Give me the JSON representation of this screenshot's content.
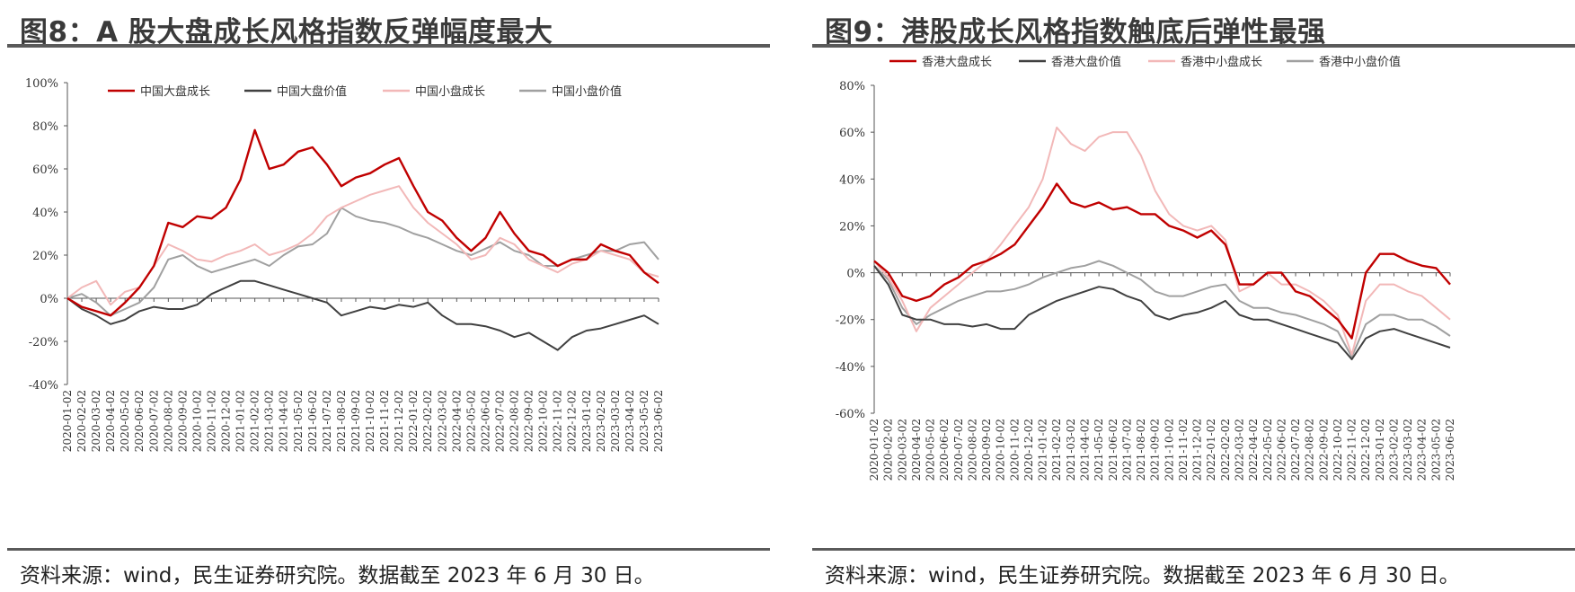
{
  "figures": [
    {
      "title": "图8：A 股大盘成长风格指数反弹幅度最大",
      "source": "资料来源：wind，民生证券研究院。数据截至 2023 年 6 月 30 日。"
    },
    {
      "title": "图9：港股成长风格指数触底后弹性最强",
      "source": "资料来源：wind，民生证券研究院。数据截至 2023 年 6 月 30 日。"
    }
  ],
  "chart_data": [
    {
      "type": "line",
      "title": "",
      "xlabel": "",
      "ylabel": "",
      "ylim": [
        -40,
        100
      ],
      "yticks": [
        -40,
        -20,
        0,
        20,
        40,
        60,
        80,
        100
      ],
      "yticklabels": [
        "-40%",
        "-20%",
        "0%",
        "20%",
        "40%",
        "60%",
        "80%",
        "100%"
      ],
      "x": [
        "2020-01-02",
        "2020-02-02",
        "2020-03-02",
        "2020-04-02",
        "2020-05-02",
        "2020-06-02",
        "2020-07-02",
        "2020-08-02",
        "2020-09-02",
        "2020-10-02",
        "2020-11-02",
        "2020-12-02",
        "2021-01-02",
        "2021-02-02",
        "2021-03-02",
        "2021-04-02",
        "2021-05-02",
        "2021-06-02",
        "2021-07-02",
        "2021-08-02",
        "2021-09-02",
        "2021-10-02",
        "2021-11-02",
        "2021-12-02",
        "2022-01-02",
        "2022-02-02",
        "2022-03-02",
        "2022-04-02",
        "2022-05-02",
        "2022-06-02",
        "2022-07-02",
        "2022-08-02",
        "2022-09-02",
        "2022-10-02",
        "2022-11-02",
        "2022-12-02",
        "2023-01-02",
        "2023-02-02",
        "2023-03-02",
        "2023-04-02",
        "2023-05-02",
        "2023-06-02"
      ],
      "legend_position": "top",
      "grid": false,
      "series": [
        {
          "name": "中国大盘成长",
          "color": "#c00000",
          "values": [
            0,
            -4,
            -6,
            -8,
            -2,
            5,
            15,
            35,
            33,
            38,
            37,
            42,
            55,
            78,
            60,
            62,
            68,
            70,
            62,
            52,
            56,
            58,
            62,
            65,
            52,
            40,
            36,
            28,
            22,
            28,
            40,
            30,
            22,
            20,
            15,
            18,
            18,
            25,
            22,
            20,
            12,
            7
          ]
        },
        {
          "name": "中国大盘价值",
          "color": "#404040",
          "values": [
            0,
            -5,
            -8,
            -12,
            -10,
            -6,
            -4,
            -5,
            -5,
            -3,
            2,
            5,
            8,
            8,
            6,
            4,
            2,
            0,
            -2,
            -8,
            -6,
            -4,
            -5,
            -3,
            -4,
            -2,
            -8,
            -12,
            -12,
            -13,
            -15,
            -18,
            -16,
            -20,
            -24,
            -18,
            -15,
            -14,
            -12,
            -10,
            -8,
            -12
          ]
        },
        {
          "name": "中国小盘成长",
          "color": "#f2b8b8",
          "values": [
            0,
            5,
            8,
            -3,
            3,
            5,
            15,
            25,
            22,
            18,
            17,
            20,
            22,
            25,
            20,
            22,
            25,
            30,
            38,
            42,
            45,
            48,
            50,
            52,
            42,
            35,
            30,
            25,
            18,
            20,
            28,
            25,
            18,
            15,
            12,
            16,
            18,
            22,
            20,
            18,
            12,
            10
          ]
        },
        {
          "name": "中国小盘价值",
          "color": "#a0a0a0",
          "values": [
            0,
            2,
            -2,
            -8,
            -5,
            -2,
            5,
            18,
            20,
            15,
            12,
            14,
            16,
            18,
            15,
            20,
            24,
            25,
            30,
            42,
            38,
            36,
            35,
            33,
            30,
            28,
            25,
            22,
            20,
            23,
            26,
            22,
            20,
            15,
            15,
            18,
            20,
            22,
            22,
            25,
            26,
            18
          ]
        }
      ]
    },
    {
      "type": "line",
      "title": "",
      "xlabel": "",
      "ylabel": "",
      "ylim": [
        -60,
        80
      ],
      "yticks": [
        -60,
        -40,
        -20,
        0,
        20,
        40,
        60,
        80
      ],
      "yticklabels": [
        "-60%",
        "-40%",
        "-20%",
        "0%",
        "20%",
        "40%",
        "60%",
        "80%"
      ],
      "x": [
        "2020-01-02",
        "2020-02-02",
        "2020-03-02",
        "2020-04-02",
        "2020-05-02",
        "2020-06-02",
        "2020-07-02",
        "2020-08-02",
        "2020-09-02",
        "2020-10-02",
        "2020-11-02",
        "2020-12-02",
        "2021-01-02",
        "2021-02-02",
        "2021-03-02",
        "2021-04-02",
        "2021-05-02",
        "2021-06-02",
        "2021-07-02",
        "2021-08-02",
        "2021-09-02",
        "2021-10-02",
        "2021-11-02",
        "2021-12-02",
        "2022-01-02",
        "2022-02-02",
        "2022-03-02",
        "2022-04-02",
        "2022-05-02",
        "2022-06-02",
        "2022-07-02",
        "2022-08-02",
        "2022-09-02",
        "2022-10-02",
        "2022-11-02",
        "2022-12-02",
        "2023-01-02",
        "2023-02-02",
        "2023-03-02",
        "2023-04-02",
        "2023-05-02",
        "2023-06-02"
      ],
      "legend_position": "top",
      "grid": false,
      "series": [
        {
          "name": "香港大盘成长",
          "color": "#c00000",
          "values": [
            5,
            0,
            -10,
            -12,
            -10,
            -5,
            -2,
            3,
            5,
            8,
            12,
            20,
            28,
            38,
            30,
            28,
            30,
            27,
            28,
            25,
            25,
            20,
            18,
            15,
            18,
            12,
            -5,
            -5,
            0,
            0,
            -8,
            -10,
            -15,
            -20,
            -28,
            0,
            8,
            8,
            5,
            3,
            2,
            -5
          ]
        },
        {
          "name": "香港大盘价值",
          "color": "#404040",
          "values": [
            3,
            -5,
            -18,
            -20,
            -20,
            -22,
            -22,
            -23,
            -22,
            -24,
            -24,
            -18,
            -15,
            -12,
            -10,
            -8,
            -6,
            -7,
            -10,
            -12,
            -18,
            -20,
            -18,
            -17,
            -15,
            -12,
            -18,
            -20,
            -20,
            -22,
            -24,
            -26,
            -28,
            -30,
            -37,
            -28,
            -25,
            -24,
            -26,
            -28,
            -30,
            -32
          ]
        },
        {
          "name": "香港中小盘成长",
          "color": "#f2b8b8",
          "values": [
            5,
            -2,
            -12,
            -25,
            -15,
            -10,
            -5,
            0,
            5,
            12,
            20,
            28,
            40,
            62,
            55,
            52,
            58,
            60,
            60,
            50,
            35,
            25,
            20,
            18,
            20,
            14,
            -8,
            -5,
            0,
            -5,
            -5,
            -8,
            -12,
            -18,
            -35,
            -12,
            -5,
            -5,
            -8,
            -10,
            -15,
            -20
          ]
        },
        {
          "name": "香港中小盘价值",
          "color": "#a0a0a0",
          "values": [
            3,
            -3,
            -15,
            -22,
            -18,
            -15,
            -12,
            -10,
            -8,
            -8,
            -7,
            -5,
            -2,
            0,
            2,
            3,
            5,
            3,
            0,
            -3,
            -8,
            -10,
            -10,
            -8,
            -6,
            -5,
            -12,
            -15,
            -15,
            -17,
            -18,
            -20,
            -22,
            -25,
            -36,
            -22,
            -18,
            -18,
            -20,
            -20,
            -23,
            -27
          ]
        }
      ]
    }
  ]
}
